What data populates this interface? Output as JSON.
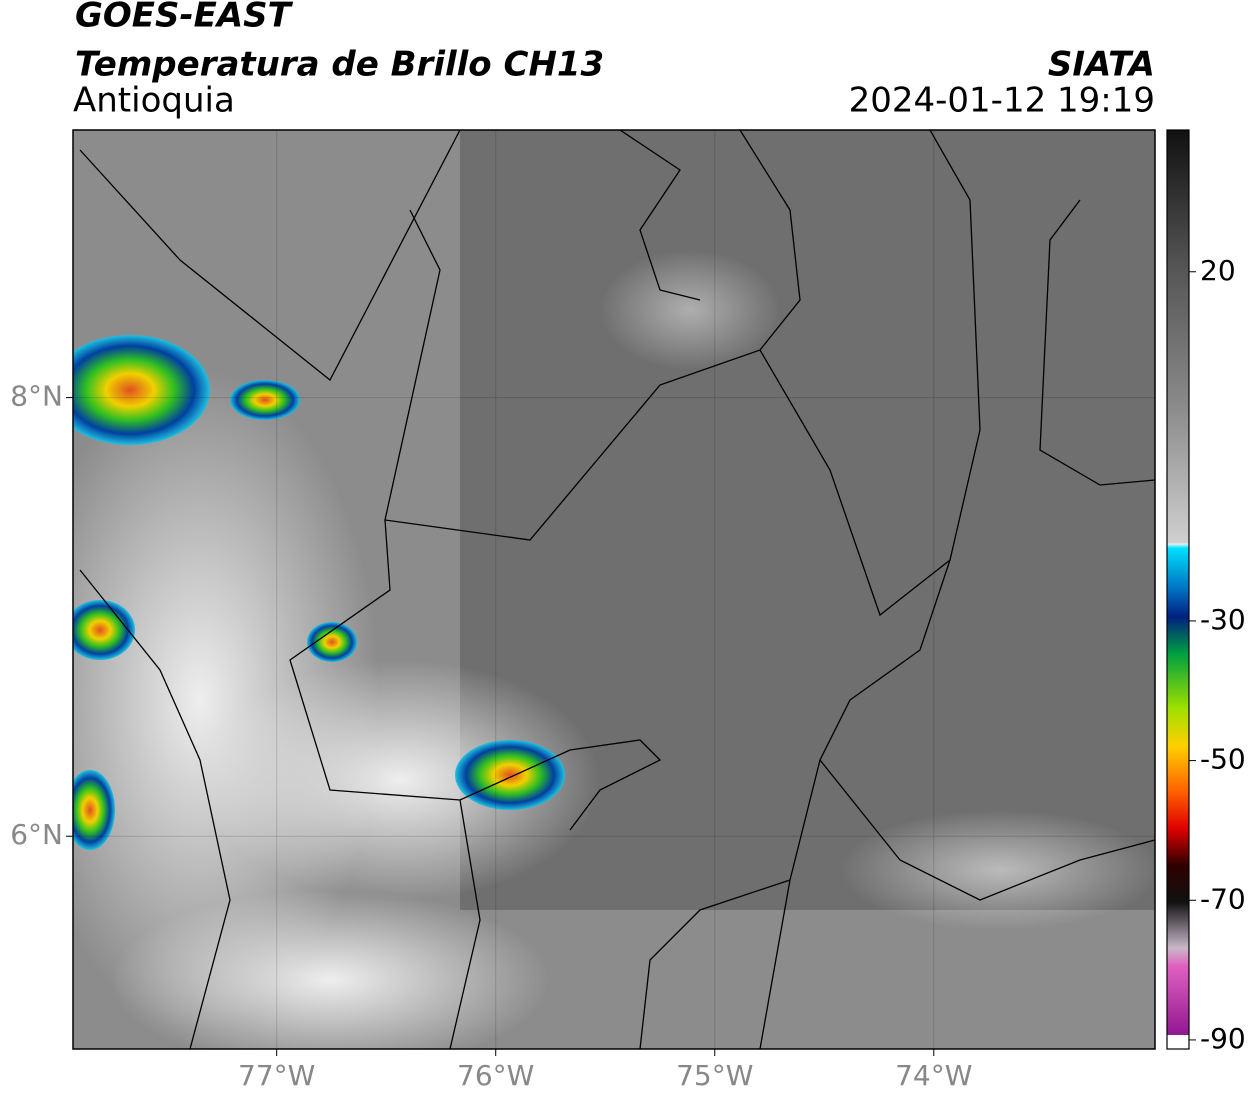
{
  "header": {
    "title": "GOES-EAST",
    "subtitle": "Temperatura de Brillo CH13",
    "region": "Antioquia",
    "source": "SIATA",
    "datetime": "2024-01-12 19:19"
  },
  "map": {
    "xlim": [
      -77.93,
      -72.99
    ],
    "ylim": [
      5.03,
      9.22
    ],
    "xticks": [
      {
        "value": -77,
        "label": "77°W"
      },
      {
        "value": -76,
        "label": "76°W"
      },
      {
        "value": -75,
        "label": "75°W"
      },
      {
        "value": -74,
        "label": "74°W"
      }
    ],
    "yticks": [
      {
        "value": 8,
        "label": "8°N"
      },
      {
        "value": 6,
        "label": "6°N"
      }
    ],
    "grid": true
  },
  "colorbar": {
    "lim": [
      -91.3,
      40.3
    ],
    "ticks": [
      20,
      -30,
      -50,
      -70,
      -90
    ]
  }
}
